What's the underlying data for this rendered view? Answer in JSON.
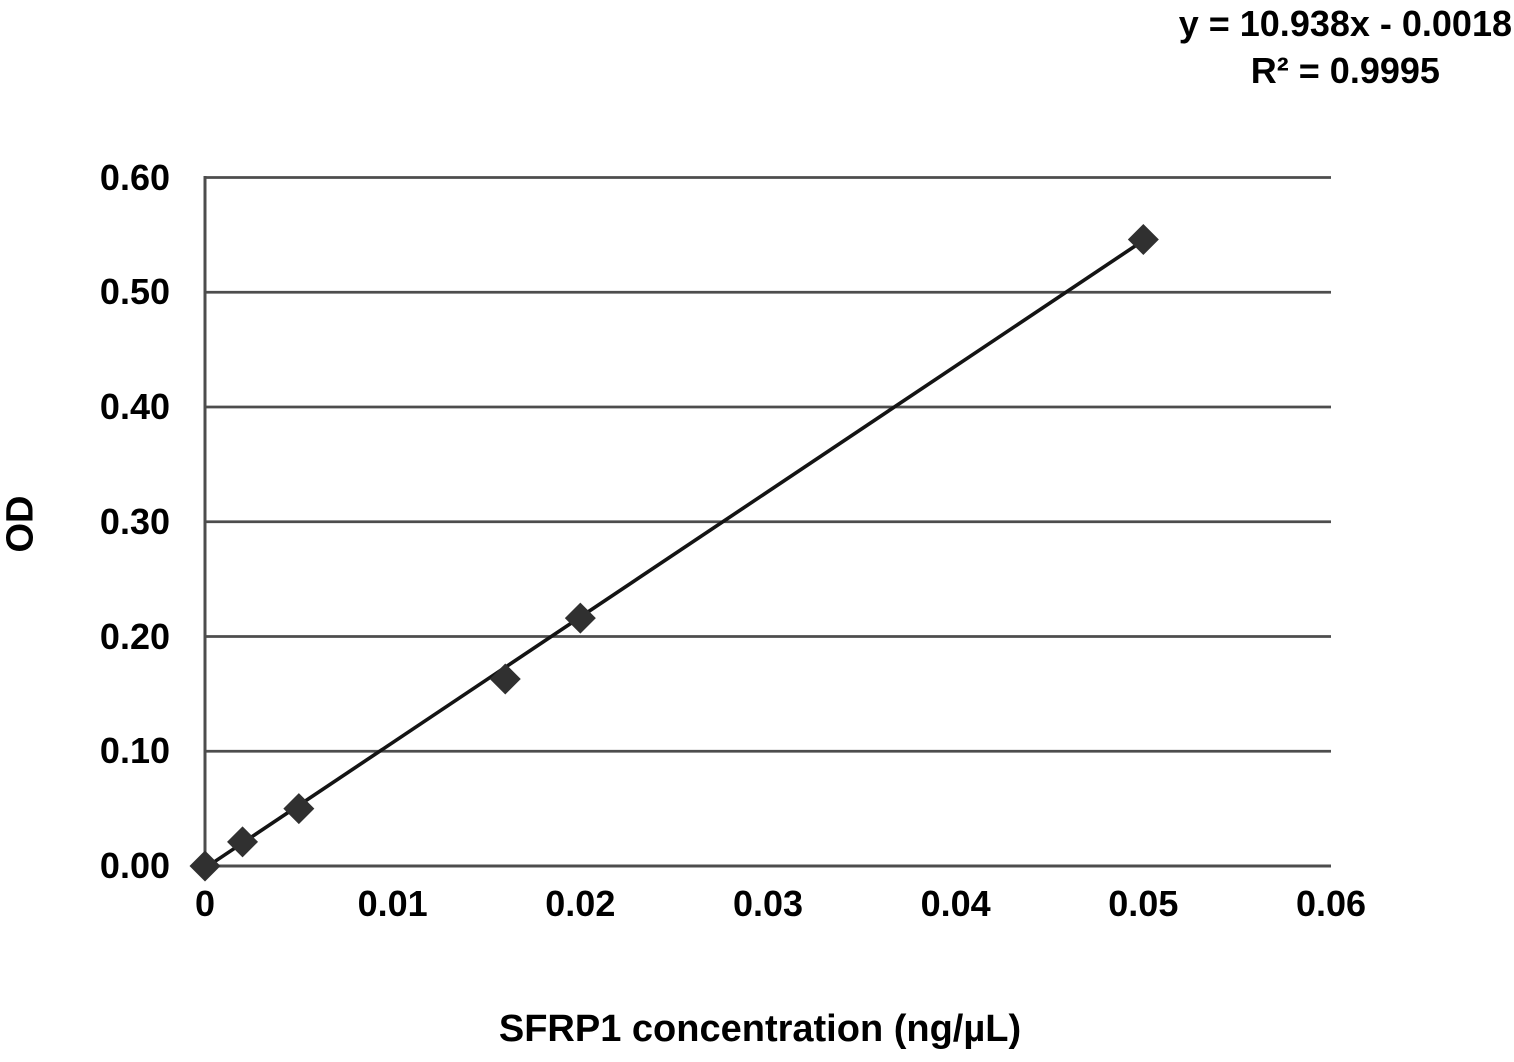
{
  "chart_data": {
    "type": "scatter",
    "title": "",
    "xlabel": "SFRP1 concentration (ng/µL)",
    "ylabel": "OD",
    "xlim": [
      0,
      0.06
    ],
    "ylim": [
      0,
      0.6
    ],
    "x_ticks": [
      "0",
      "0.01",
      "0.02",
      "0.03",
      "0.04",
      "0.05",
      "0.06"
    ],
    "y_ticks": [
      "0.00",
      "0.10",
      "0.20",
      "0.30",
      "0.40",
      "0.50",
      "0.60"
    ],
    "grid": "horizontal-only",
    "legend_position": "none",
    "series": [
      {
        "name": "standard-points",
        "marker": "diamond",
        "color": "#303030",
        "points": [
          {
            "x": 0,
            "y": 0.0
          },
          {
            "x": 0.002,
            "y": 0.021
          },
          {
            "x": 0.005,
            "y": 0.05
          },
          {
            "x": 0.016,
            "y": 0.163
          },
          {
            "x": 0.02,
            "y": 0.216
          },
          {
            "x": 0.05,
            "y": 0.546
          }
        ]
      }
    ],
    "trendline": {
      "type": "linear",
      "slope": 10.938,
      "intercept": -0.0018,
      "x_start": 0,
      "x_end": 0.05,
      "color": "#141414"
    },
    "annotation": {
      "equation": "y = 10.938x - 0.0018",
      "r_squared": "R² = 0.9995"
    },
    "colors": {
      "axis": "#4d4d4d",
      "grid": "#4d4d4d",
      "text": "#000000",
      "background": "#ffffff"
    }
  }
}
